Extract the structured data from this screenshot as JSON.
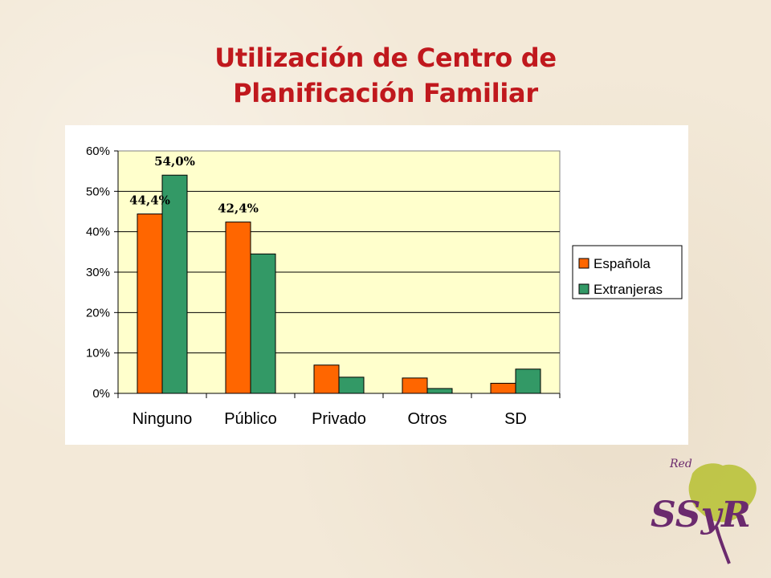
{
  "slide": {
    "title_line1": "Utilización de Centro de",
    "title_line2": "Planificación Familiar"
  },
  "logo": {
    "small_text": "Red",
    "main_text": "SSyR"
  },
  "colors": {
    "title": "#c0181d",
    "espanola": "#ff6600",
    "extranjeras": "#339966",
    "plot_bg": "#ffffcc"
  },
  "chart_data": {
    "type": "bar",
    "categories": [
      "Ninguno",
      "Público",
      "Privado",
      "Otros",
      "SD"
    ],
    "series": [
      {
        "name": "Española",
        "values": [
          44.4,
          42.4,
          7.0,
          3.8,
          2.5
        ],
        "color": "#ff6600"
      },
      {
        "name": "Extranjeras",
        "values": [
          54.0,
          34.5,
          4.0,
          1.2,
          6.0
        ],
        "color": "#339966"
      }
    ],
    "data_labels": [
      {
        "text": "44,4%",
        "series": 0,
        "category": 0
      },
      {
        "text": "54,0%",
        "series": 1,
        "category": 0
      },
      {
        "text": "42,4%",
        "series": 0,
        "category": 1
      }
    ],
    "yticks": [
      "0%",
      "10%",
      "20%",
      "30%",
      "40%",
      "50%",
      "60%"
    ],
    "ylim": [
      0,
      60
    ],
    "grid": true,
    "legend_position": "right"
  }
}
